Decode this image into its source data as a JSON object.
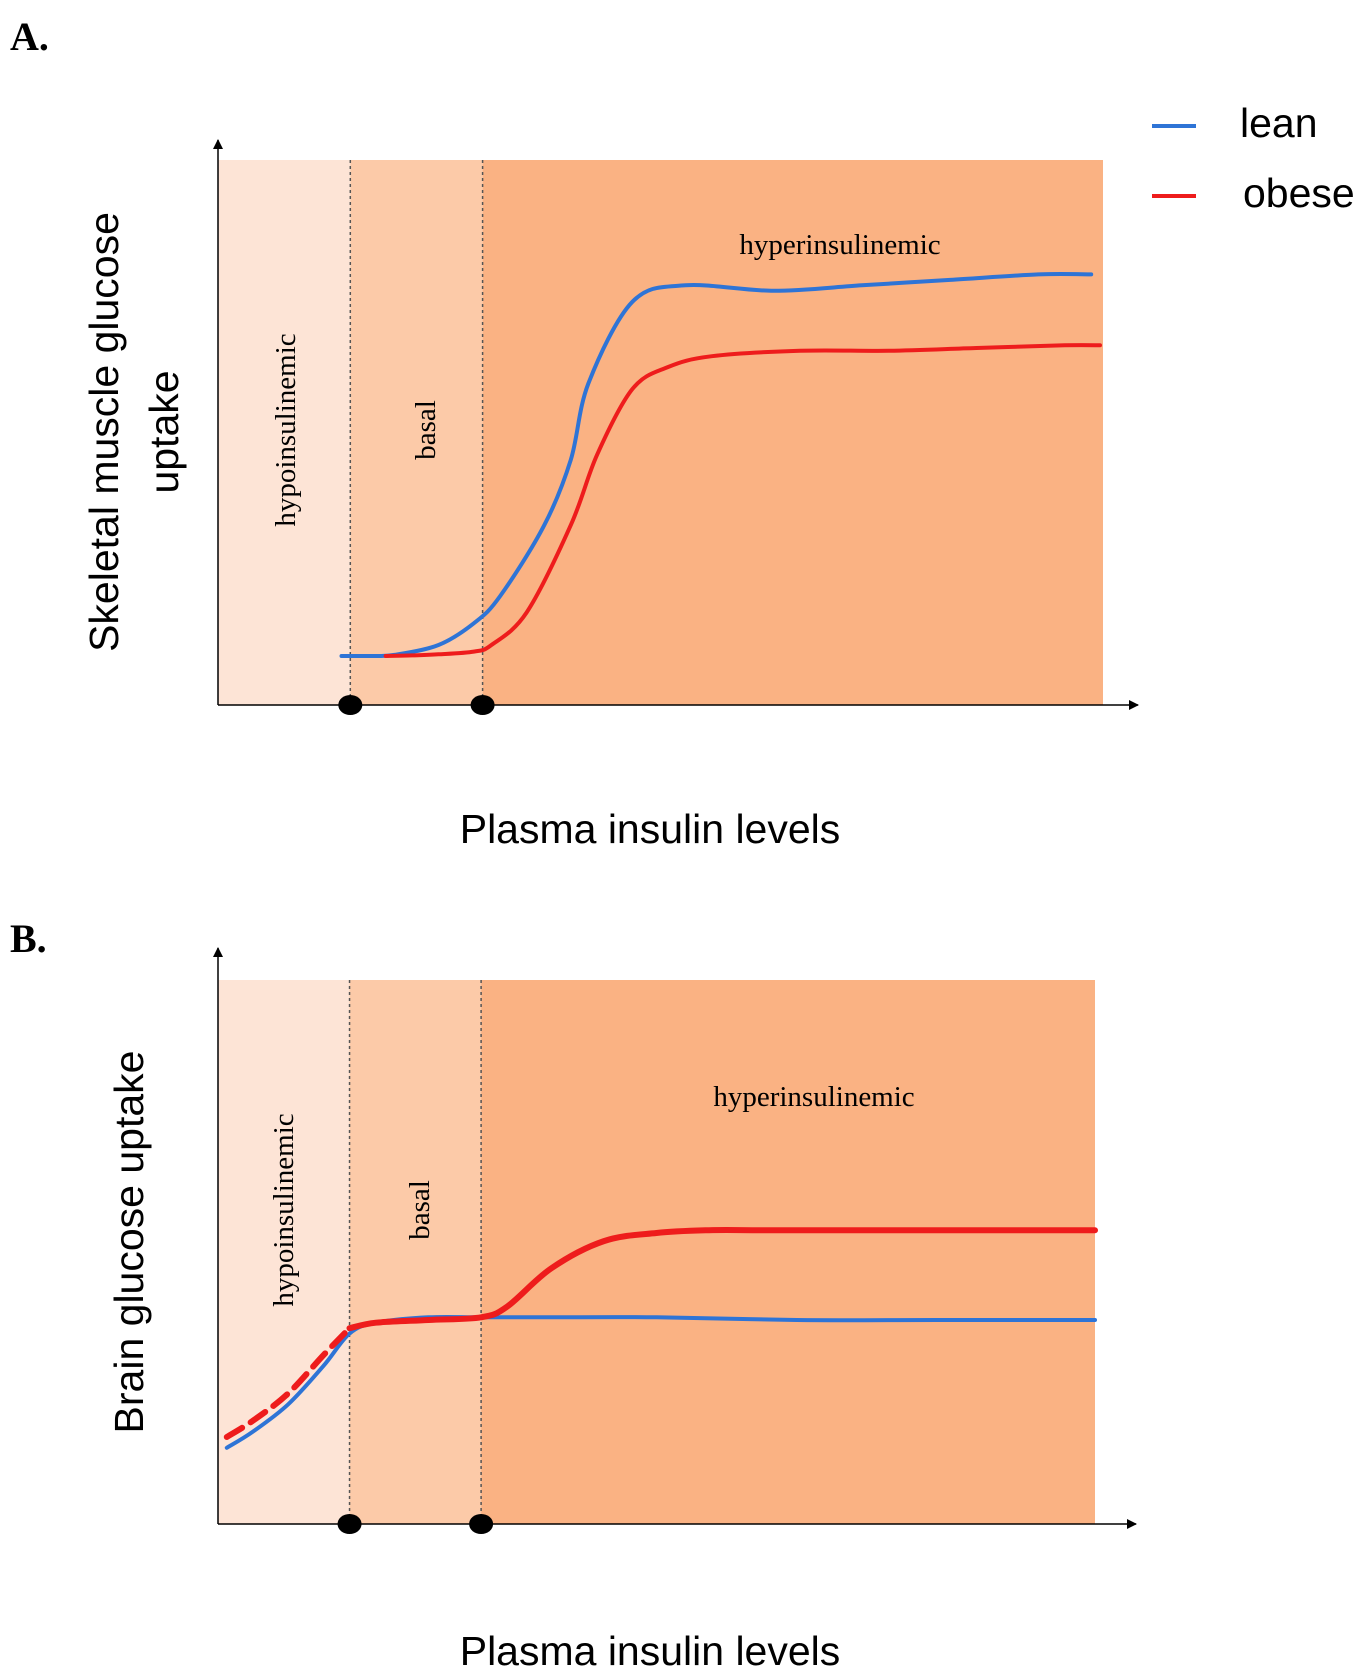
{
  "legend": {
    "items": [
      {
        "label": "lean",
        "color": "#2e74d6"
      },
      {
        "label": "obese",
        "color": "#ee1c1c"
      }
    ]
  },
  "colors": {
    "hypo": "#fde4d6",
    "basal": "#fccaa8",
    "hyper": "#fab283",
    "axis": "#000000",
    "lean": "#2e74d6",
    "obese": "#ee1c1c"
  },
  "chart_data": [
    {
      "panel": "A.",
      "type": "line",
      "ylabel_lines": [
        "Skeletal muscle glucose",
        "uptake"
      ],
      "xlabel": "Plasma insulin levels",
      "xlim": [
        0,
        100
      ],
      "ylim": [
        0,
        100
      ],
      "regions": [
        {
          "name": "hypoinsulinemic",
          "x0": 0,
          "x1": 15
        },
        {
          "name": "basal",
          "x0": 15,
          "x1": 30
        },
        {
          "name": "hyperinsulinemic",
          "x0": 30,
          "x1": 100
        }
      ],
      "markers_x": [
        15,
        30
      ],
      "series": [
        {
          "name": "lean",
          "dashed_until": null,
          "x": [
            14,
            17,
            20,
            25,
            29,
            32,
            37,
            40,
            42,
            47,
            53,
            63,
            73,
            83,
            93,
            99
          ],
          "y": [
            9,
            9,
            9.2,
            11,
            15,
            20,
            33,
            45,
            59,
            74,
            77,
            76,
            77,
            78,
            79,
            79
          ]
        },
        {
          "name": "obese",
          "dashed_until": null,
          "x": [
            19,
            22,
            25,
            29,
            31,
            35,
            40,
            43,
            47,
            51,
            56,
            66,
            76,
            86,
            96,
            100
          ],
          "y": [
            9,
            9.1,
            9.3,
            9.8,
            11,
            17,
            33,
            46,
            58,
            62,
            64,
            65,
            65,
            65.5,
            66,
            66
          ]
        }
      ]
    },
    {
      "panel": "B.",
      "type": "line",
      "ylabel_lines": [
        "Brain glucose uptake"
      ],
      "xlabel": "Plasma insulin levels",
      "xlim": [
        0,
        100
      ],
      "ylim": [
        0,
        100
      ],
      "regions": [
        {
          "name": "hypoinsulinemic",
          "x0": 0,
          "x1": 15
        },
        {
          "name": "basal",
          "x0": 15,
          "x1": 30
        },
        {
          "name": "hyperinsulinemic",
          "x0": 30,
          "x1": 100
        }
      ],
      "markers_x": [
        15,
        30
      ],
      "series": [
        {
          "name": "lean",
          "dashed_until": null,
          "x": [
            1,
            4,
            8,
            12,
            15,
            18,
            24,
            30,
            38,
            50,
            66,
            82,
            100
          ],
          "y": [
            14,
            17,
            22,
            29,
            35,
            37,
            38,
            38,
            38,
            38,
            37.5,
            37.5,
            37.5
          ]
        },
        {
          "name": "obese",
          "dashed_until": 15,
          "x": [
            1,
            4,
            8,
            12,
            15,
            18,
            24,
            30,
            33,
            38,
            44,
            50,
            56,
            62,
            72,
            82,
            100
          ],
          "y": [
            16,
            19,
            24,
            31,
            36,
            37,
            37.5,
            38,
            40,
            47,
            52,
            53.5,
            54,
            54,
            54,
            54,
            54
          ]
        }
      ]
    }
  ]
}
